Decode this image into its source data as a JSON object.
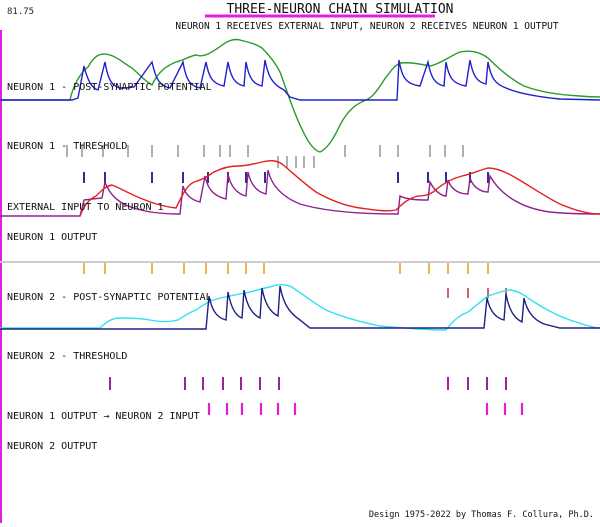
{
  "header": {
    "counter": "81.75",
    "title": "THREE-NEURON CHAIN SIMULATION",
    "subtitle": "NEURON 1 RECEIVES EXTERNAL INPUT, NEURON 2 RECEIVES NEURON 1 OUTPUT"
  },
  "labels": {
    "n1_psp": "NEURON 1 - POST-SYNAPTIC POTENTIAL",
    "n1_threshold": "NEURON 1 - THRESHOLD",
    "ext_input": "EXTERNAL INPUT TO NEURON 1",
    "n1_output": "NEURON 1 OUTPUT",
    "n2_psp": "NEURON 2 - POST-SYNAPTIC POTENTIAL",
    "n2_threshold": "NEURON 2 - THRESHOLD",
    "n1_to_n2": "NEURON 1 OUTPUT → NEURON 2 INPUT",
    "n2_output": "NEURON 2 OUTPUT"
  },
  "footer": {
    "credit": "Design 1975-2022 by Thomas F. Collura, Ph.D."
  },
  "colors": {
    "title_underline": "#e020e0",
    "left_border": "#e020e0",
    "n1_psp_green": "#2a9a2a",
    "n1_spike_blue": "#2020d0",
    "n1_threshold_mark": "#606060",
    "n1_input_mark": "#303090",
    "ext_input_red": "#e02020",
    "ext_input_purple": "#902090",
    "divider": "#cccccc",
    "n1_output_orange": "#f0a020",
    "n2_psp_cyan": "#30e0f0",
    "n2_spike_navy": "#202080",
    "n2_in_mark_red": "#c04040",
    "n2_threshold_purple": "#a020a0",
    "n1_to_n2_magenta": "#e020d0"
  },
  "spike_events": {
    "n1_input_ticks": [
      84,
      105,
      152,
      183,
      208,
      228,
      246,
      265,
      398,
      428,
      446,
      470,
      488
    ],
    "n1_threshold_ticks_top": [
      67,
      82,
      103,
      128,
      152,
      178,
      204,
      220,
      230,
      248,
      345,
      380,
      398,
      430,
      445,
      463
    ],
    "n1_threshold_ticks_low": [
      278,
      287,
      296,
      304,
      314
    ],
    "n1_output_ticks": [
      84,
      105,
      152,
      184,
      206,
      228,
      246,
      264,
      400,
      429,
      448,
      468,
      488
    ],
    "n2_input_ticks": [
      448,
      468,
      488,
      506
    ],
    "n2_threshold_ticks": [
      110,
      185,
      203,
      223,
      241,
      260,
      279,
      448,
      468,
      487,
      506
    ],
    "n1_to_n2_ticks": [
      209,
      227,
      242,
      261,
      278,
      295,
      487,
      505,
      522
    ]
  }
}
